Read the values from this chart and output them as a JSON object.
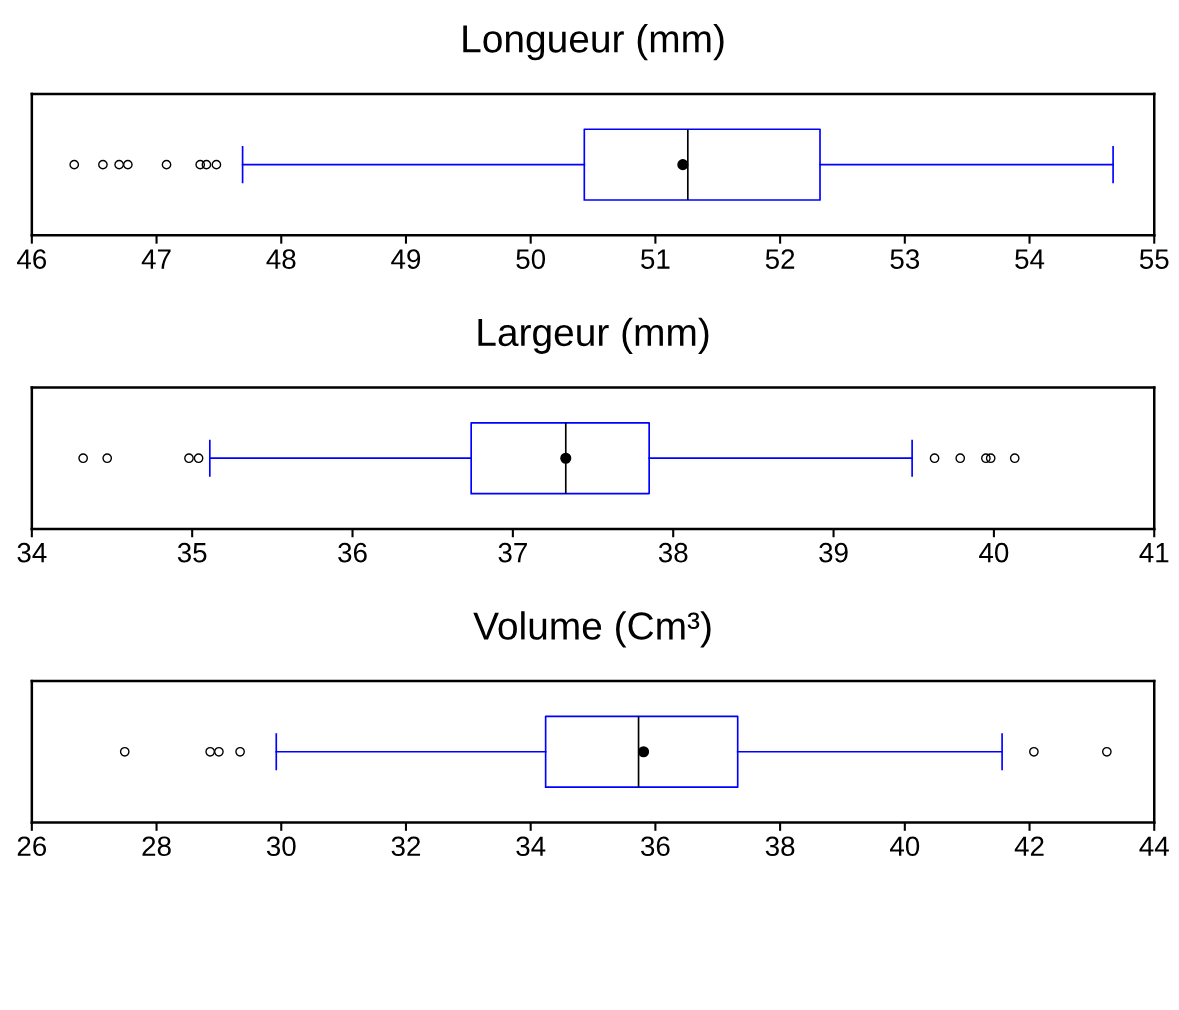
{
  "chart_data": [
    {
      "type": "box",
      "title": "Longueur (mm)",
      "categories": [
        null
      ],
      "orientation": "horizontal",
      "color": "#0000ff",
      "tick_labels": "x",
      "grid": false,
      "xlim": [
        46,
        55
      ],
      "xticks": [
        46,
        47,
        48,
        49,
        50,
        51,
        52,
        53,
        54,
        55
      ],
      "boxes": [
        {
          "low": 47.69,
          "q1": 50.43,
          "median": 51.26,
          "q3": 52.32,
          "high": 54.67,
          "mean": 51.22,
          "outliers": [
            46.34,
            46.57,
            46.7,
            46.77,
            47.08,
            47.35,
            47.4,
            47.48
          ]
        }
      ]
    },
    {
      "type": "box",
      "title": "Largeur (mm)",
      "categories": [
        null
      ],
      "orientation": "horizontal",
      "color": "#0000ff",
      "tick_labels": "x",
      "grid": false,
      "xlim": [
        34,
        41
      ],
      "xticks": [
        34,
        35,
        36,
        37,
        38,
        39,
        40,
        41
      ],
      "boxes": [
        {
          "low": 35.11,
          "q1": 36.74,
          "median": 37.33,
          "q3": 37.85,
          "high": 39.49,
          "mean": 37.33,
          "outliers": [
            34.32,
            34.47,
            34.98,
            35.04,
            39.63,
            39.79,
            39.95,
            39.98,
            40.13
          ]
        }
      ]
    },
    {
      "type": "box",
      "title": "Volume (Cm³)",
      "categories": [
        null
      ],
      "orientation": "horizontal",
      "color": "#0000ff",
      "tick_labels": "x",
      "grid": false,
      "xlim": [
        26,
        44
      ],
      "xticks": [
        26,
        28,
        30,
        32,
        34,
        36,
        38,
        40,
        42,
        44
      ],
      "boxes": [
        {
          "low": 29.92,
          "q1": 34.24,
          "median": 35.73,
          "q3": 37.32,
          "high": 41.56,
          "mean": 35.81,
          "outliers": [
            27.49,
            28.86,
            29.0,
            29.34,
            42.07,
            43.24
          ]
        }
      ]
    }
  ]
}
